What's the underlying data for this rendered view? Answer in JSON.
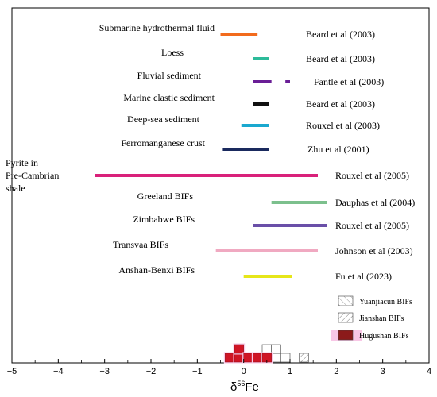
{
  "chart_data": {
    "type": "range-bar",
    "xlabel_prefix": "δ",
    "xlabel_sup": "56",
    "xlabel_suffix": "Fe",
    "xlim": [
      -5,
      4
    ],
    "xticks": [
      -5,
      -4,
      -3,
      -2,
      -1,
      0,
      1,
      2,
      3,
      4
    ],
    "ranges": [
      {
        "label": [
          "Submarine hydrothermal fluid"
        ],
        "ref": "Beard et al (2003)",
        "color": "#f26b1d",
        "segments": [
          [
            -0.5,
            0.3
          ]
        ]
      },
      {
        "label": [
          "Loess"
        ],
        "ref": "Beard et al (2003)",
        "color": "#2dbb9a",
        "segments": [
          [
            0.2,
            0.55
          ]
        ]
      },
      {
        "label": [
          "Fluvial sediment"
        ],
        "ref": "Fantle et al (2003)",
        "color": "#6a1e96",
        "segments": [
          [
            0.2,
            0.6
          ],
          [
            0.9,
            1.0
          ]
        ]
      },
      {
        "label": [
          "Marine clastic sediment"
        ],
        "ref": "Beard et al (2003)",
        "color": "#111111",
        "segments": [
          [
            0.2,
            0.55
          ]
        ]
      },
      {
        "label": [
          "Deep-sea sediment"
        ],
        "ref": "Rouxel et al (2003)",
        "color": "#1aa8cf",
        "segments": [
          [
            -0.05,
            0.55
          ]
        ]
      },
      {
        "label": [
          "Ferromanganese crust"
        ],
        "ref": "Zhu et al (2001)",
        "color": "#1a2a5e",
        "segments": [
          [
            -0.45,
            0.55
          ]
        ]
      },
      {
        "label": [
          "Pyrite in",
          "Pre-Cambrian",
          "shale"
        ],
        "ref": "Rouxel et al (2005)",
        "color": "#d9217a",
        "segments": [
          [
            -3.2,
            1.6
          ]
        ]
      },
      {
        "label": [
          "Greeland BIFs"
        ],
        "ref": "Dauphas et al (2004)",
        "color": "#7cc08d",
        "segments": [
          [
            0.6,
            1.8
          ]
        ]
      },
      {
        "label": [
          "Zimbabwe BIFs"
        ],
        "ref": "Rouxel et al (2005)",
        "color": "#6a4fa8",
        "segments": [
          [
            0.2,
            1.8
          ]
        ]
      },
      {
        "label": [
          "Transvaa BIFs"
        ],
        "ref": "Johnson et al (2003)",
        "color": "#f0a9c1",
        "segments": [
          [
            -0.6,
            1.6
          ]
        ]
      },
      {
        "label": [
          "Anshan-Benxi BIFs"
        ],
        "ref": "Fu et al (2023)",
        "color": "#e6e619",
        "segments": [
          [
            0.0,
            1.05
          ]
        ]
      }
    ],
    "histogram": {
      "bin_width": 0.2,
      "series": [
        {
          "name": "Yuanjiacun BIFs",
          "style": "open",
          "bins": [
            [
              0.4,
              2
            ],
            [
              0.6,
              2
            ],
            [
              0.8,
              1
            ]
          ]
        },
        {
          "name": "Jianshan BIFs",
          "style": "hatch",
          "bins": [
            [
              0.4,
              1
            ],
            [
              1.2,
              1
            ]
          ]
        },
        {
          "name": "Hugushan BIFs",
          "style": "red",
          "bins": [
            [
              -0.4,
              1
            ],
            [
              -0.2,
              2
            ],
            [
              0.0,
              1
            ],
            [
              0.2,
              1
            ],
            [
              0.4,
              1
            ]
          ]
        }
      ]
    }
  }
}
